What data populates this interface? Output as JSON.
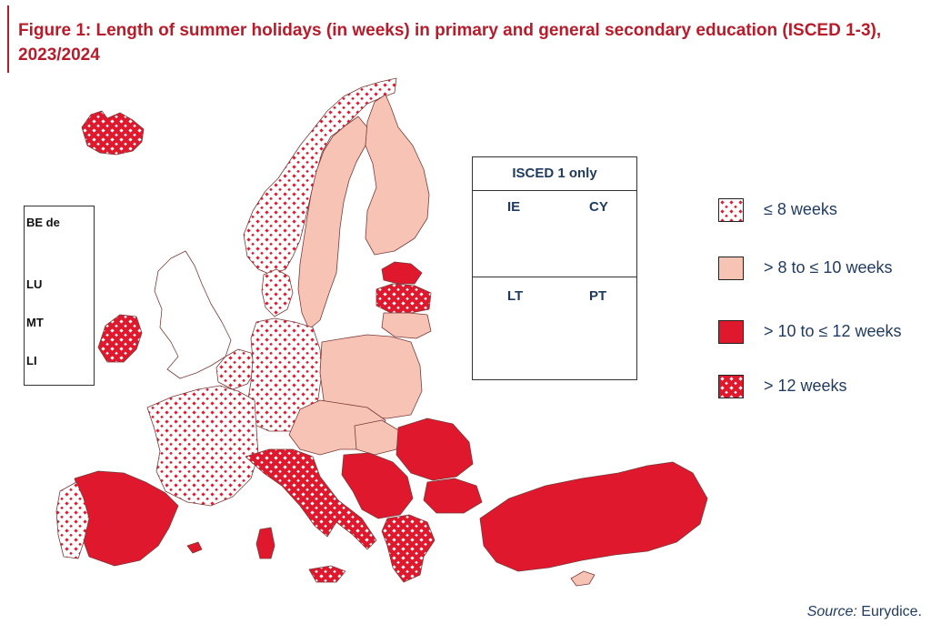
{
  "title": "Figure 1: Length of summer holidays (in weeks) in primary and general secondary education (ISCED 1-3), 2023/2024",
  "colors": {
    "low": "#ffffff",
    "pink": "#f6c3b5",
    "red": "#e0182d",
    "pattern_dot": "#e0182d",
    "outline": "#7a3a3a",
    "title": "#b81c2b",
    "text": "#1f3a5f"
  },
  "legend": [
    {
      "key": "le8",
      "label": "≤ 8 weeks",
      "swatch": "dots"
    },
    {
      "key": "8to10",
      "label": "> 8 to ≤ 10 weeks",
      "swatch": "pink"
    },
    {
      "key": "10to12",
      "label": "> 10 to ≤ 12 weeks",
      "swatch": "red"
    },
    {
      "key": "gt12",
      "label": "> 12 weeks",
      "swatch": "redcross"
    }
  ],
  "small_countries": [
    {
      "code": "BE de",
      "category": "8to10"
    },
    {
      "code": "LU",
      "category": "8to10"
    },
    {
      "code": "MT",
      "category": "gt12"
    },
    {
      "code": "LI",
      "category": "le8"
    }
  ],
  "isced1": {
    "title": "ISCED 1 only",
    "countries": [
      {
        "code": "IE",
        "category": "8to10"
      },
      {
        "code": "CY",
        "category": "10to12"
      },
      {
        "code": "LT",
        "category": "10to12"
      },
      {
        "code": "PT",
        "category": "10to12"
      }
    ]
  },
  "source": {
    "prefix": "Source:",
    "text": "Eurydice."
  }
}
